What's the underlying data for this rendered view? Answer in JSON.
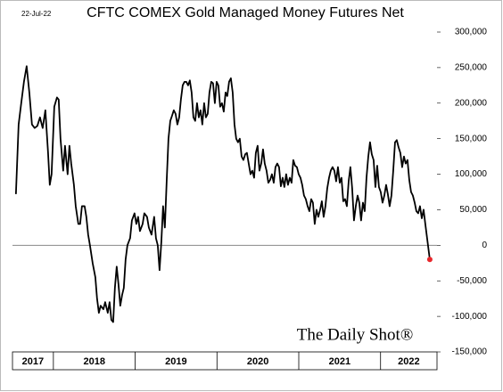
{
  "chart_data": {
    "type": "line",
    "title": "CFTC COMEX Gold Managed Money Futures Net",
    "date_label": "22-Jul-22",
    "watermark": "The Daily Shot®",
    "color": "#000000",
    "last_point_color": "#e8262b",
    "zero_line": true,
    "xlim": [
      2017.5,
      2022.69
    ],
    "xticks": [
      2017,
      2018,
      2019,
      2020,
      2021,
      2022
    ],
    "ylim": [
      -150000,
      300000
    ],
    "yticks": [
      {
        "value": -150000,
        "label": "-150,000"
      },
      {
        "value": -100000,
        "label": "-100,000"
      },
      {
        "value": -50000,
        "label": "-50,000"
      },
      0,
      {
        "value": 50000,
        "label": "50,000"
      },
      {
        "value": 100000,
        "label": "100,000"
      },
      {
        "value": 150000,
        "label": "150,000"
      },
      {
        "value": 200000,
        "label": "200,000"
      },
      {
        "value": 250000,
        "label": "250,000"
      },
      {
        "value": 300000,
        "label": "300,000"
      }
    ],
    "x": [
      2017.542,
      2017.575,
      2017.607,
      2017.64,
      2017.673,
      2017.706,
      2017.738,
      2017.771,
      2017.804,
      2017.836,
      2017.869,
      2017.902,
      2017.935,
      2017.956,
      2017.978,
      2018.011,
      2018.044,
      2018.065,
      2018.087,
      2018.12,
      2018.142,
      2018.174,
      2018.196,
      2018.218,
      2018.251,
      2018.273,
      2018.305,
      2018.327,
      2018.349,
      2018.382,
      2018.403,
      2018.425,
      2018.447,
      2018.48,
      2018.513,
      2018.534,
      2018.556,
      2018.578,
      2018.611,
      2018.633,
      2018.665,
      2018.687,
      2018.709,
      2018.731,
      2018.752,
      2018.774,
      2018.796,
      2018.818,
      2018.84,
      2018.861,
      2018.883,
      2018.905,
      2018.938,
      2018.96,
      2018.992,
      2019.014,
      2019.036,
      2019.058,
      2019.091,
      2019.112,
      2019.145,
      2019.167,
      2019.2,
      2019.232,
      2019.254,
      2019.276,
      2019.298,
      2019.32,
      2019.341,
      2019.363,
      2019.385,
      2019.407,
      2019.429,
      2019.45,
      2019.472,
      2019.494,
      2019.516,
      2019.538,
      2019.559,
      2019.581,
      2019.603,
      2019.625,
      2019.647,
      2019.668,
      2019.69,
      2019.712,
      2019.734,
      2019.756,
      2019.778,
      2019.799,
      2019.821,
      2019.843,
      2019.865,
      2019.887,
      2019.908,
      2019.93,
      2019.952,
      2019.974,
      2019.996,
      2020.017,
      2020.039,
      2020.061,
      2020.083,
      2020.105,
      2020.126,
      2020.148,
      2020.17,
      2020.192,
      2020.214,
      2020.235,
      2020.257,
      2020.279,
      2020.301,
      2020.323,
      2020.345,
      2020.366,
      2020.388,
      2020.41,
      2020.432,
      2020.454,
      2020.475,
      2020.497,
      2020.519,
      2020.541,
      2020.563,
      2020.584,
      2020.606,
      2020.628,
      2020.65,
      2020.672,
      2020.694,
      2020.715,
      2020.737,
      2020.759,
      2020.781,
      2020.803,
      2020.824,
      2020.846,
      2020.868,
      2020.89,
      2020.912,
      2020.933,
      2020.955,
      2020.977,
      2020.999,
      2021.021,
      2021.042,
      2021.064,
      2021.086,
      2021.108,
      2021.13,
      2021.152,
      2021.173,
      2021.195,
      2021.217,
      2021.239,
      2021.261,
      2021.282,
      2021.304,
      2021.326,
      2021.348,
      2021.37,
      2021.391,
      2021.413,
      2021.435,
      2021.457,
      2021.479,
      2021.501,
      2021.522,
      2021.544,
      2021.566,
      2021.588,
      2021.61,
      2021.631,
      2021.653,
      2021.675,
      2021.697,
      2021.719,
      2021.74,
      2021.762,
      2021.784,
      2021.806,
      2021.828,
      2021.85,
      2021.871,
      2021.893,
      2021.915,
      2021.937,
      2021.959,
      2021.98,
      2022.002,
      2022.024,
      2022.046,
      2022.068,
      2022.089,
      2022.111,
      2022.133,
      2022.155,
      2022.177,
      2022.198,
      2022.22,
      2022.242,
      2022.264,
      2022.286,
      2022.307,
      2022.329,
      2022.351,
      2022.373,
      2022.395,
      2022.417,
      2022.438,
      2022.46,
      2022.482,
      2022.504,
      2022.526,
      2022.547,
      2022.569,
      2022.591,
      2022.602
    ],
    "values": [
      72000,
      170000,
      200000,
      230000,
      252000,
      215000,
      170000,
      165000,
      168000,
      180000,
      165000,
      190000,
      130000,
      85000,
      100000,
      195000,
      208000,
      205000,
      150000,
      105000,
      140000,
      100000,
      140000,
      115000,
      85000,
      55000,
      30000,
      30000,
      55000,
      55000,
      40000,
      15000,
      0,
      -25000,
      -45000,
      -75000,
      -95000,
      -85000,
      -90000,
      -80000,
      -95000,
      -80000,
      -105000,
      -108000,
      -60000,
      -30000,
      -55000,
      -85000,
      -70000,
      -60000,
      -20000,
      0,
      10000,
      35000,
      45000,
      30000,
      40000,
      20000,
      30000,
      45000,
      40000,
      25000,
      15000,
      40000,
      10000,
      0,
      -35000,
      5000,
      55000,
      25000,
      90000,
      150000,
      175000,
      182000,
      190000,
      185000,
      170000,
      180000,
      205000,
      225000,
      230000,
      230000,
      225000,
      232000,
      215000,
      180000,
      175000,
      200000,
      180000,
      190000,
      170000,
      200000,
      180000,
      185000,
      215000,
      230000,
      228000,
      200000,
      230000,
      225000,
      195000,
      200000,
      188000,
      215000,
      210000,
      230000,
      235000,
      215000,
      170000,
      150000,
      145000,
      150000,
      125000,
      120000,
      128000,
      130000,
      115000,
      100000,
      105000,
      95000,
      130000,
      140000,
      105000,
      115000,
      135000,
      115000,
      105000,
      88000,
      92000,
      100000,
      88000,
      110000,
      115000,
      110000,
      83000,
      95000,
      82000,
      100000,
      85000,
      95000,
      88000,
      120000,
      112000,
      110000,
      100000,
      95000,
      85000,
      70000,
      65000,
      55000,
      48000,
      65000,
      60000,
      30000,
      50000,
      40000,
      50000,
      62000,
      40000,
      55000,
      80000,
      95000,
      105000,
      110000,
      105000,
      90000,
      110000,
      88000,
      95000,
      62000,
      65000,
      55000,
      90000,
      110000,
      80000,
      35000,
      55000,
      70000,
      60000,
      35000,
      60000,
      48000,
      95000,
      125000,
      145000,
      128000,
      120000,
      82000,
      112000,
      82000,
      75000,
      60000,
      70000,
      85000,
      72000,
      55000,
      70000,
      105000,
      145000,
      148000,
      138000,
      130000,
      110000,
      125000,
      115000,
      120000,
      92000,
      75000,
      70000,
      60000,
      48000,
      45000,
      55000,
      38000,
      50000,
      30000,
      10000,
      -10000,
      -20000
    ]
  }
}
